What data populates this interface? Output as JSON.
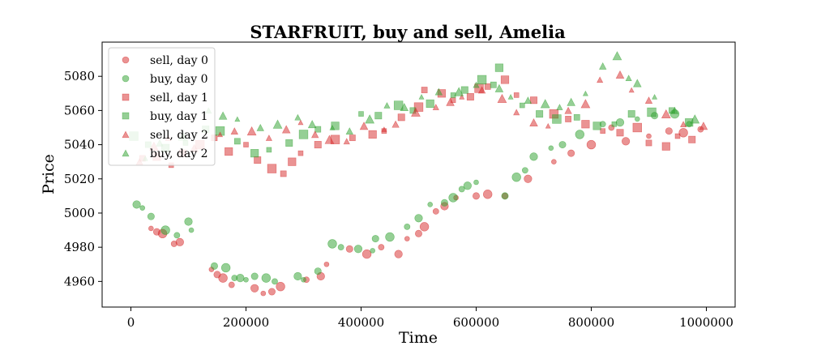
{
  "chart_data": {
    "type": "scatter",
    "title": "STARFRUIT, buy and sell, Amelia",
    "xlabel": "Time",
    "ylabel": "Price",
    "xlim": [
      -50000,
      1050000
    ],
    "ylim": [
      4945,
      5100
    ],
    "xticks": [
      0,
      200000,
      400000,
      600000,
      800000,
      1000000
    ],
    "xtick_labels": [
      "0",
      "200000",
      "400000",
      "600000",
      "800000",
      "1000000"
    ],
    "yticks": [
      4960,
      4980,
      5000,
      5020,
      5040,
      5060,
      5080
    ],
    "ytick_labels": [
      "4960",
      "4980",
      "5000",
      "5020",
      "5040",
      "5060",
      "5080"
    ],
    "grid": false,
    "legend_position": "upper left",
    "colors": {
      "sell": "#d62728",
      "buy": "#2ca02c",
      "axes": "#000000"
    },
    "series": [
      {
        "name": "sell, day 0",
        "marker": "circle",
        "side": "sell",
        "points": [
          [
            35000,
            4991
          ],
          [
            45000,
            4989
          ],
          [
            55000,
            4988
          ],
          [
            75000,
            4982
          ],
          [
            85000,
            4983
          ],
          [
            140000,
            4967
          ],
          [
            150000,
            4964
          ],
          [
            160000,
            4962
          ],
          [
            175000,
            4958
          ],
          [
            215000,
            4956
          ],
          [
            230000,
            4953
          ],
          [
            245000,
            4954
          ],
          [
            260000,
            4957
          ],
          [
            305000,
            4961
          ],
          [
            330000,
            4963
          ],
          [
            340000,
            4970
          ],
          [
            380000,
            4979
          ],
          [
            410000,
            4976
          ],
          [
            435000,
            4980
          ],
          [
            465000,
            4976
          ],
          [
            480000,
            4985
          ],
          [
            500000,
            4988
          ],
          [
            510000,
            4992
          ],
          [
            530000,
            5001
          ],
          [
            545000,
            5004
          ],
          [
            565000,
            5009
          ],
          [
            600000,
            5010
          ],
          [
            620000,
            5011
          ],
          [
            650000,
            5010
          ],
          [
            690000,
            5020
          ],
          [
            735000,
            5030
          ],
          [
            765000,
            5035
          ],
          [
            800000,
            5040
          ],
          [
            835000,
            5050
          ],
          [
            860000,
            5042
          ],
          [
            900000,
            5045
          ],
          [
            935000,
            5048
          ],
          [
            960000,
            5047
          ],
          [
            990000,
            5049
          ]
        ]
      },
      {
        "name": "buy, day 0",
        "marker": "circle",
        "side": "buy",
        "points": [
          [
            10000,
            5005
          ],
          [
            20000,
            5003
          ],
          [
            35000,
            4998
          ],
          [
            60000,
            4990
          ],
          [
            80000,
            4987
          ],
          [
            100000,
            4995
          ],
          [
            105000,
            4990
          ],
          [
            145000,
            4969
          ],
          [
            165000,
            4968
          ],
          [
            180000,
            4962
          ],
          [
            190000,
            4962
          ],
          [
            200000,
            4961
          ],
          [
            215000,
            4963
          ],
          [
            235000,
            4962
          ],
          [
            250000,
            4960
          ],
          [
            290000,
            4963
          ],
          [
            300000,
            4961
          ],
          [
            325000,
            4966
          ],
          [
            350000,
            4982
          ],
          [
            365000,
            4980
          ],
          [
            395000,
            4979
          ],
          [
            420000,
            4978
          ],
          [
            425000,
            4985
          ],
          [
            450000,
            4986
          ],
          [
            480000,
            4992
          ],
          [
            500000,
            4997
          ],
          [
            520000,
            5005
          ],
          [
            545000,
            5006
          ],
          [
            560000,
            5009
          ],
          [
            575000,
            5014
          ],
          [
            585000,
            5016
          ],
          [
            600000,
            5018
          ],
          [
            650000,
            5010
          ],
          [
            670000,
            5021
          ],
          [
            685000,
            5025
          ],
          [
            700000,
            5033
          ],
          [
            730000,
            5038
          ],
          [
            750000,
            5040
          ],
          [
            780000,
            5046
          ],
          [
            820000,
            5052
          ],
          [
            850000,
            5053
          ],
          [
            880000,
            5055
          ],
          [
            910000,
            5057
          ],
          [
            945000,
            5058
          ],
          [
            970000,
            5052
          ]
        ]
      },
      {
        "name": "sell, day 1",
        "marker": "square",
        "side": "sell",
        "points": [
          [
            20000,
            5032
          ],
          [
            45000,
            5033
          ],
          [
            70000,
            5028
          ],
          [
            90000,
            5035
          ],
          [
            120000,
            5040
          ],
          [
            145000,
            5044
          ],
          [
            170000,
            5036
          ],
          [
            200000,
            5040
          ],
          [
            220000,
            5031
          ],
          [
            245000,
            5026
          ],
          [
            265000,
            5023
          ],
          [
            280000,
            5030
          ],
          [
            295000,
            5035
          ],
          [
            325000,
            5040
          ],
          [
            355000,
            5043
          ],
          [
            385000,
            5044
          ],
          [
            420000,
            5046
          ],
          [
            440000,
            5048
          ],
          [
            470000,
            5056
          ],
          [
            500000,
            5062
          ],
          [
            510000,
            5072
          ],
          [
            540000,
            5070
          ],
          [
            560000,
            5066
          ],
          [
            590000,
            5068
          ],
          [
            605000,
            5073
          ],
          [
            620000,
            5074
          ],
          [
            650000,
            5078
          ],
          [
            670000,
            5069
          ],
          [
            700000,
            5066
          ],
          [
            735000,
            5058
          ],
          [
            760000,
            5055
          ],
          [
            790000,
            5052
          ],
          [
            820000,
            5048
          ],
          [
            850000,
            5047
          ],
          [
            880000,
            5050
          ],
          [
            900000,
            5041
          ],
          [
            930000,
            5039
          ],
          [
            950000,
            5045
          ],
          [
            975000,
            5043
          ]
        ]
      },
      {
        "name": "buy, day 1",
        "marker": "square",
        "side": "buy",
        "points": [
          [
            5000,
            5045
          ],
          [
            30000,
            5040
          ],
          [
            60000,
            5038
          ],
          [
            95000,
            5041
          ],
          [
            130000,
            5049
          ],
          [
            155000,
            5048
          ],
          [
            185000,
            5042
          ],
          [
            215000,
            5035
          ],
          [
            240000,
            5037
          ],
          [
            275000,
            5041
          ],
          [
            300000,
            5046
          ],
          [
            325000,
            5049
          ],
          [
            355000,
            5051
          ],
          [
            400000,
            5058
          ],
          [
            430000,
            5057
          ],
          [
            465000,
            5063
          ],
          [
            490000,
            5060
          ],
          [
            520000,
            5064
          ],
          [
            560000,
            5069
          ],
          [
            580000,
            5072
          ],
          [
            610000,
            5078
          ],
          [
            630000,
            5075
          ],
          [
            640000,
            5085
          ],
          [
            680000,
            5063
          ],
          [
            710000,
            5058
          ],
          [
            740000,
            5055
          ],
          [
            775000,
            5056
          ],
          [
            810000,
            5051
          ],
          [
            840000,
            5052
          ],
          [
            870000,
            5058
          ],
          [
            905000,
            5059
          ],
          [
            940000,
            5060
          ],
          [
            970000,
            5053
          ]
        ]
      },
      {
        "name": "sell, day 2",
        "marker": "triangle",
        "side": "sell",
        "points": [
          [
            15000,
            5030
          ],
          [
            40000,
            5039
          ],
          [
            65000,
            5044
          ],
          [
            110000,
            5038
          ],
          [
            155000,
            5046
          ],
          [
            180000,
            5048
          ],
          [
            210000,
            5048
          ],
          [
            240000,
            5044
          ],
          [
            270000,
            5049
          ],
          [
            295000,
            5053
          ],
          [
            320000,
            5046
          ],
          [
            345000,
            5043
          ],
          [
            375000,
            5042
          ],
          [
            405000,
            5051
          ],
          [
            440000,
            5049
          ],
          [
            460000,
            5052
          ],
          [
            495000,
            5059
          ],
          [
            530000,
            5062
          ],
          [
            555000,
            5065
          ],
          [
            575000,
            5068
          ],
          [
            610000,
            5072
          ],
          [
            645000,
            5067
          ],
          [
            670000,
            5059
          ],
          [
            700000,
            5053
          ],
          [
            725000,
            5051
          ],
          [
            760000,
            5060
          ],
          [
            790000,
            5064
          ],
          [
            815000,
            5078
          ],
          [
            850000,
            5081
          ],
          [
            870000,
            5072
          ],
          [
            900000,
            5066
          ],
          [
            930000,
            5058
          ],
          [
            960000,
            5052
          ],
          [
            995000,
            5051
          ]
        ]
      },
      {
        "name": "buy, day 2",
        "marker": "triangle",
        "side": "buy",
        "points": [
          [
            25000,
            5032
          ],
          [
            50000,
            5041
          ],
          [
            90000,
            5045
          ],
          [
            135000,
            5060
          ],
          [
            160000,
            5057
          ],
          [
            185000,
            5055
          ],
          [
            225000,
            5050
          ],
          [
            255000,
            5052
          ],
          [
            290000,
            5056
          ],
          [
            315000,
            5052
          ],
          [
            350000,
            5050
          ],
          [
            380000,
            5048
          ],
          [
            415000,
            5055
          ],
          [
            445000,
            5063
          ],
          [
            475000,
            5062
          ],
          [
            505000,
            5068
          ],
          [
            535000,
            5071
          ],
          [
            570000,
            5071
          ],
          [
            600000,
            5075
          ],
          [
            640000,
            5073
          ],
          [
            660000,
            5068
          ],
          [
            690000,
            5066
          ],
          [
            720000,
            5064
          ],
          [
            745000,
            5062
          ],
          [
            765000,
            5065
          ],
          [
            790000,
            5070
          ],
          [
            820000,
            5086
          ],
          [
            845000,
            5092
          ],
          [
            865000,
            5079
          ],
          [
            880000,
            5076
          ],
          [
            910000,
            5068
          ],
          [
            945000,
            5060
          ],
          [
            980000,
            5055
          ]
        ]
      }
    ]
  }
}
